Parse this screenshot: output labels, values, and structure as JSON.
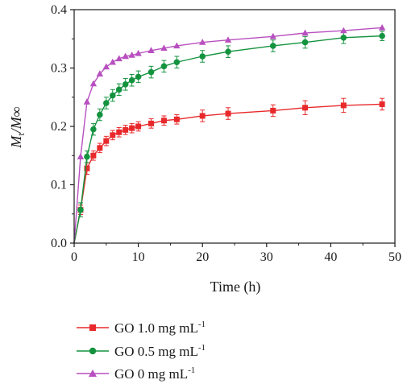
{
  "chart_data": {
    "type": "line",
    "xlabel": "Time (h)",
    "ylabel_main": "M",
    "ylabel_sub": "t",
    "ylabel_rest": "/M∞",
    "xlim": [
      0,
      50
    ],
    "ylim": [
      0,
      0.4
    ],
    "xticks": [
      0,
      10,
      20,
      30,
      40,
      50
    ],
    "yticks": [
      0.0,
      0.1,
      0.2,
      0.3,
      0.4
    ],
    "xtick_labels": [
      "0",
      "10",
      "20",
      "30",
      "40",
      "50"
    ],
    "ytick_labels": [
      "0.0",
      "0.1",
      "0.2",
      "0.3",
      "0.4"
    ],
    "grid": false,
    "legend_position": "below",
    "series": [
      {
        "name_main": "GO 1.0 mg mL",
        "name_sup": "-1",
        "color": "#e8292b",
        "marker": "square",
        "x": [
          0,
          1,
          2,
          3,
          4,
          5,
          6,
          7,
          8,
          9,
          10,
          12,
          14,
          16,
          20,
          24,
          31,
          36,
          42,
          48
        ],
        "y": [
          0,
          0.057,
          0.128,
          0.15,
          0.163,
          0.175,
          0.185,
          0.19,
          0.194,
          0.197,
          0.2,
          0.205,
          0.21,
          0.212,
          0.218,
          0.222,
          0.227,
          0.232,
          0.236,
          0.238
        ],
        "err": [
          0,
          0.008,
          0.01,
          0.008,
          0.008,
          0.008,
          0.008,
          0.008,
          0.008,
          0.008,
          0.008,
          0.008,
          0.008,
          0.008,
          0.01,
          0.01,
          0.01,
          0.012,
          0.012,
          0.01
        ]
      },
      {
        "name_main": "GO 0.5 mg mL",
        "name_sup": "-1",
        "color": "#14933f",
        "marker": "circle",
        "x": [
          0,
          1,
          2,
          3,
          4,
          5,
          6,
          7,
          8,
          9,
          10,
          12,
          14,
          16,
          20,
          24,
          31,
          36,
          42,
          48
        ],
        "y": [
          0,
          0.057,
          0.148,
          0.195,
          0.22,
          0.24,
          0.253,
          0.263,
          0.272,
          0.279,
          0.285,
          0.293,
          0.303,
          0.31,
          0.32,
          0.328,
          0.338,
          0.344,
          0.352,
          0.355
        ],
        "err": [
          0,
          0.012,
          0.01,
          0.01,
          0.01,
          0.01,
          0.01,
          0.01,
          0.01,
          0.01,
          0.01,
          0.01,
          0.01,
          0.01,
          0.01,
          0.01,
          0.01,
          0.01,
          0.01,
          0.008
        ]
      },
      {
        "name_main": "GO 0 mg mL",
        "name_sup": "-1",
        "color": "#b84fc0",
        "marker": "triangle",
        "x": [
          0,
          1,
          2,
          3,
          4,
          5,
          6,
          7,
          8,
          9,
          10,
          12,
          14,
          16,
          20,
          24,
          31,
          36,
          42,
          48
        ],
        "y": [
          0,
          0.148,
          0.242,
          0.273,
          0.29,
          0.302,
          0.31,
          0.316,
          0.32,
          0.322,
          0.325,
          0.33,
          0.334,
          0.338,
          0.344,
          0.348,
          0.354,
          0.36,
          0.364,
          0.369
        ],
        "err": [
          0,
          0,
          0,
          0,
          0,
          0,
          0,
          0,
          0,
          0,
          0,
          0,
          0,
          0,
          0,
          0,
          0,
          0,
          0,
          0
        ]
      }
    ]
  }
}
